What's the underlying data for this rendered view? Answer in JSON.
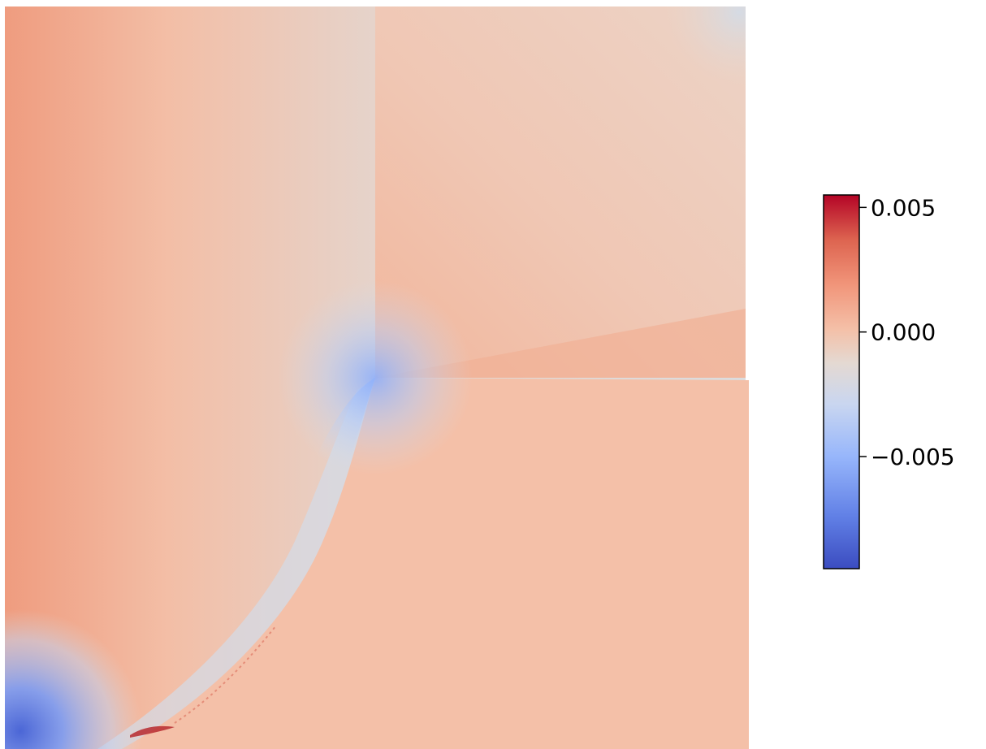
{
  "chart_data": {
    "type": "heatmap",
    "colormap": "coolwarm",
    "colormap_stops": [
      "#3b4cc0",
      "#7da0f9",
      "#c0d4f5",
      "#dddcdc",
      "#f2cbb7",
      "#f49a7b",
      "#e7745b",
      "#b40426"
    ],
    "colorbar": {
      "range": [
        -0.0095,
        0.0055
      ],
      "ticks": [
        {
          "value": 0.005,
          "label": "0.005"
        },
        {
          "value": 0.0,
          "label": "0.000"
        },
        {
          "value": -0.005,
          "label": "−0.005"
        }
      ]
    },
    "notes": "field on a square domain with a notch boundary ending at the domain centre"
  }
}
